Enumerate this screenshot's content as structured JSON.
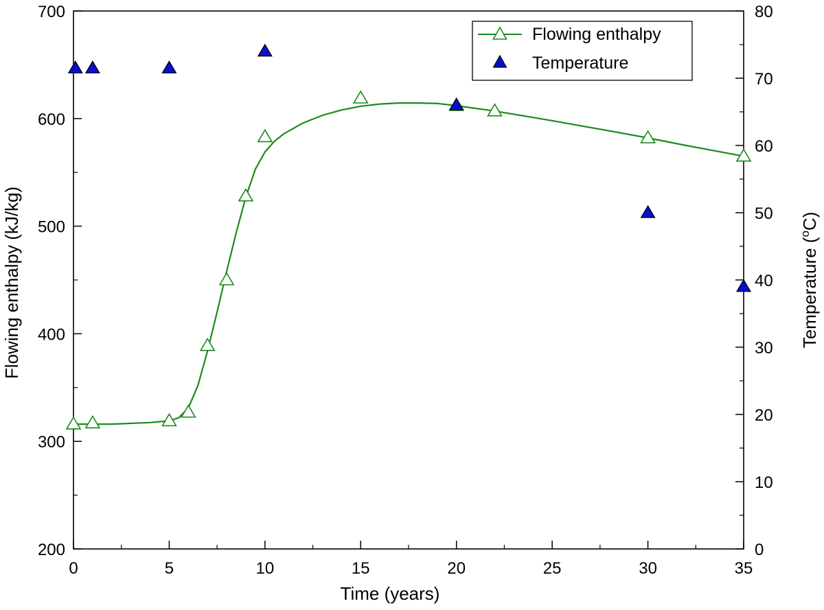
{
  "chart_data": {
    "type": "line",
    "title": "",
    "xlabel": "Time (years)",
    "ylabel_left": "Flowing enthalpy (kJ/kg)",
    "ylabel_right_main": "Temperature (",
    "ylabel_right_sup": "o",
    "ylabel_right_end": "C)",
    "xlim": [
      0,
      35
    ],
    "ylim_left": [
      200,
      700
    ],
    "ylim_right": [
      0,
      80
    ],
    "x_ticks": [
      0,
      5,
      10,
      15,
      20,
      25,
      30,
      35
    ],
    "y_left_ticks": [
      200,
      300,
      400,
      500,
      600,
      700
    ],
    "y_right_ticks": [
      0,
      10,
      20,
      30,
      40,
      50,
      60,
      70,
      80
    ],
    "grid": false,
    "legend_position": "top-right",
    "series": [
      {
        "name": "Flowing enthalpy",
        "axis": "left",
        "marker": "open-triangle",
        "color": "#1a8a1a",
        "points": [
          [
            0,
            316
          ],
          [
            1,
            317
          ],
          [
            5,
            319
          ],
          [
            6,
            327
          ],
          [
            7,
            389
          ],
          [
            8,
            450
          ],
          [
            9,
            528
          ],
          [
            10,
            583
          ],
          [
            15,
            619
          ],
          [
            20,
            612
          ],
          [
            22,
            607
          ],
          [
            30,
            582
          ],
          [
            35,
            565
          ]
        ],
        "curve": [
          [
            0,
            316
          ],
          [
            2,
            316
          ],
          [
            4,
            317.5
          ],
          [
            5,
            319
          ],
          [
            5.5,
            322
          ],
          [
            6,
            331
          ],
          [
            6.5,
            352
          ],
          [
            7,
            384
          ],
          [
            7.5,
            420
          ],
          [
            8,
            458
          ],
          [
            8.5,
            494
          ],
          [
            9,
            527
          ],
          [
            9.5,
            553
          ],
          [
            10,
            569
          ],
          [
            10.5,
            579
          ],
          [
            11,
            586
          ],
          [
            12,
            596
          ],
          [
            13,
            603
          ],
          [
            14,
            608
          ],
          [
            15,
            611.5
          ],
          [
            16,
            613.5
          ],
          [
            17,
            614.5
          ],
          [
            18,
            614.5
          ],
          [
            19,
            614
          ],
          [
            20,
            612
          ],
          [
            22,
            607
          ],
          [
            25,
            598
          ],
          [
            28,
            588.5
          ],
          [
            30,
            582
          ],
          [
            32,
            575
          ],
          [
            35,
            565
          ]
        ]
      },
      {
        "name": "Temperature",
        "axis": "right",
        "marker": "filled-triangle",
        "color": "#0d0dcc",
        "points": [
          [
            0.1,
            71.5
          ],
          [
            1,
            71.5
          ],
          [
            5,
            71.5
          ],
          [
            10,
            74
          ],
          [
            20,
            66
          ],
          [
            30,
            50
          ],
          [
            35,
            39
          ]
        ]
      }
    ]
  }
}
